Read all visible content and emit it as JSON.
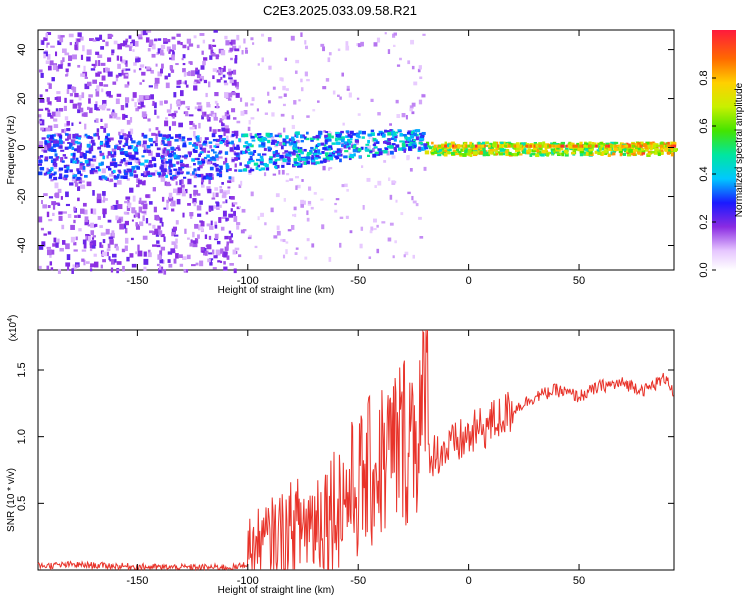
{
  "title": "C2E3.2025.033.09.58.R21",
  "chart_data": [
    {
      "type": "heatmap",
      "xlabel": "Height of straight line (km)",
      "ylabel": "Frequency (Hz)",
      "xlim": [
        -195,
        93
      ],
      "ylim": [
        -50,
        48
      ],
      "xticks": [
        -150,
        -100,
        -50,
        0,
        50
      ],
      "yticks": [
        -40,
        -20,
        0,
        20,
        40
      ],
      "colorbar": {
        "label": "Normalized spectral amplitude",
        "range": [
          0.0,
          1.0
        ],
        "ticks": [
          0.0,
          0.2,
          0.4,
          0.6,
          0.8
        ]
      },
      "description_regions": [
        {
          "x_range": [
            -195,
            -105
          ],
          "pattern": "scattered purple noise across all frequencies, band near 0 Hz"
        },
        {
          "x_range": [
            -105,
            -20
          ],
          "pattern": "purple/blue band centered near 0 Hz, rising toward +5 Hz"
        },
        {
          "x_range": [
            -20,
            93
          ],
          "pattern": "narrow band at ~0 Hz, amplitude high (green to red)"
        }
      ]
    },
    {
      "type": "line",
      "xlabel": "Height of straight line (km)",
      "ylabel": "SNR (10 * v/v)",
      "yscale_note": "(x10",
      "yscale_exp": "4",
      "xlim": [
        -195,
        93
      ],
      "ylim": [
        0,
        1.8
      ],
      "xticks": [
        -150,
        -100,
        -50,
        0,
        50
      ],
      "yticks": [
        0.5,
        1.0,
        1.5
      ],
      "ytick_labels": [
        "0.5",
        "1.0",
        "1.5"
      ],
      "series": [
        {
          "color": "#e8332a",
          "x": [
            -195,
            -180,
            -160,
            -140,
            -120,
            -105,
            -100,
            -90,
            -80,
            -70,
            -60,
            -50,
            -40,
            -30,
            -20,
            -10,
            0,
            10,
            20,
            30,
            40,
            50,
            60,
            70,
            80,
            90,
            93
          ],
          "y": [
            0.03,
            0.04,
            0.03,
            0.02,
            0.02,
            0.02,
            0.05,
            0.1,
            0.15,
            0.2,
            0.3,
            0.4,
            0.55,
            0.7,
            0.85,
            0.9,
            1.0,
            1.1,
            1.2,
            1.3,
            1.35,
            1.3,
            1.38,
            1.4,
            1.35,
            1.45,
            1.3
          ]
        }
      ]
    }
  ]
}
